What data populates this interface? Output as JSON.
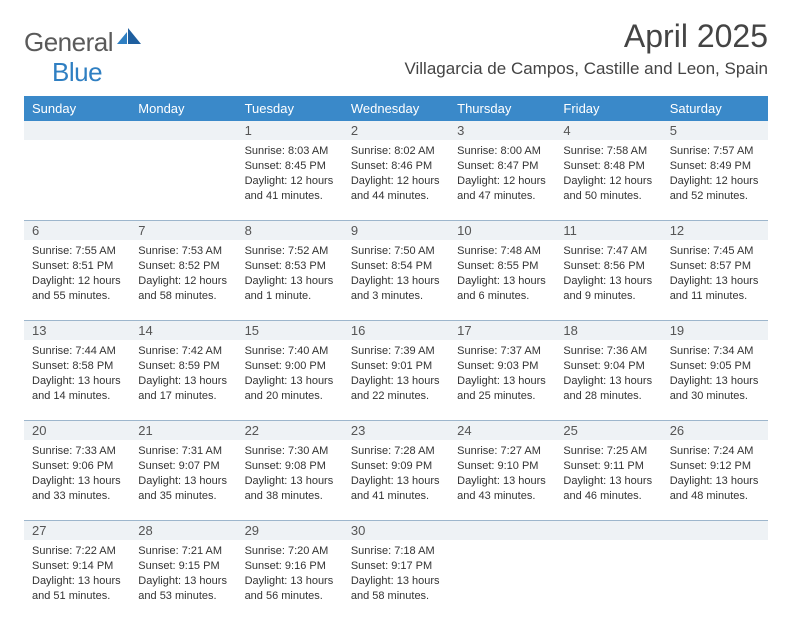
{
  "brand": {
    "part1": "General",
    "part2": "Blue"
  },
  "title": "April 2025",
  "location": "Villagarcia de Campos, Castille and Leon, Spain",
  "colors": {
    "header_bg": "#3a89c9",
    "header_text": "#ffffff",
    "daynum_bg": "#eef2f5",
    "row_border": "#9db6cc",
    "brand_gray": "#5a5a5a",
    "brand_blue": "#2f7fc2"
  },
  "dayHeaders": [
    "Sunday",
    "Monday",
    "Tuesday",
    "Wednesday",
    "Thursday",
    "Friday",
    "Saturday"
  ],
  "weeks": [
    [
      null,
      null,
      {
        "n": "1",
        "sunrise": "8:03 AM",
        "sunset": "8:45 PM",
        "daylight": "12 hours and 41 minutes."
      },
      {
        "n": "2",
        "sunrise": "8:02 AM",
        "sunset": "8:46 PM",
        "daylight": "12 hours and 44 minutes."
      },
      {
        "n": "3",
        "sunrise": "8:00 AM",
        "sunset": "8:47 PM",
        "daylight": "12 hours and 47 minutes."
      },
      {
        "n": "4",
        "sunrise": "7:58 AM",
        "sunset": "8:48 PM",
        "daylight": "12 hours and 50 minutes."
      },
      {
        "n": "5",
        "sunrise": "7:57 AM",
        "sunset": "8:49 PM",
        "daylight": "12 hours and 52 minutes."
      }
    ],
    [
      {
        "n": "6",
        "sunrise": "7:55 AM",
        "sunset": "8:51 PM",
        "daylight": "12 hours and 55 minutes."
      },
      {
        "n": "7",
        "sunrise": "7:53 AM",
        "sunset": "8:52 PM",
        "daylight": "12 hours and 58 minutes."
      },
      {
        "n": "8",
        "sunrise": "7:52 AM",
        "sunset": "8:53 PM",
        "daylight": "13 hours and 1 minute."
      },
      {
        "n": "9",
        "sunrise": "7:50 AM",
        "sunset": "8:54 PM",
        "daylight": "13 hours and 3 minutes."
      },
      {
        "n": "10",
        "sunrise": "7:48 AM",
        "sunset": "8:55 PM",
        "daylight": "13 hours and 6 minutes."
      },
      {
        "n": "11",
        "sunrise": "7:47 AM",
        "sunset": "8:56 PM",
        "daylight": "13 hours and 9 minutes."
      },
      {
        "n": "12",
        "sunrise": "7:45 AM",
        "sunset": "8:57 PM",
        "daylight": "13 hours and 11 minutes."
      }
    ],
    [
      {
        "n": "13",
        "sunrise": "7:44 AM",
        "sunset": "8:58 PM",
        "daylight": "13 hours and 14 minutes."
      },
      {
        "n": "14",
        "sunrise": "7:42 AM",
        "sunset": "8:59 PM",
        "daylight": "13 hours and 17 minutes."
      },
      {
        "n": "15",
        "sunrise": "7:40 AM",
        "sunset": "9:00 PM",
        "daylight": "13 hours and 20 minutes."
      },
      {
        "n": "16",
        "sunrise": "7:39 AM",
        "sunset": "9:01 PM",
        "daylight": "13 hours and 22 minutes."
      },
      {
        "n": "17",
        "sunrise": "7:37 AM",
        "sunset": "9:03 PM",
        "daylight": "13 hours and 25 minutes."
      },
      {
        "n": "18",
        "sunrise": "7:36 AM",
        "sunset": "9:04 PM",
        "daylight": "13 hours and 28 minutes."
      },
      {
        "n": "19",
        "sunrise": "7:34 AM",
        "sunset": "9:05 PM",
        "daylight": "13 hours and 30 minutes."
      }
    ],
    [
      {
        "n": "20",
        "sunrise": "7:33 AM",
        "sunset": "9:06 PM",
        "daylight": "13 hours and 33 minutes."
      },
      {
        "n": "21",
        "sunrise": "7:31 AM",
        "sunset": "9:07 PM",
        "daylight": "13 hours and 35 minutes."
      },
      {
        "n": "22",
        "sunrise": "7:30 AM",
        "sunset": "9:08 PM",
        "daylight": "13 hours and 38 minutes."
      },
      {
        "n": "23",
        "sunrise": "7:28 AM",
        "sunset": "9:09 PM",
        "daylight": "13 hours and 41 minutes."
      },
      {
        "n": "24",
        "sunrise": "7:27 AM",
        "sunset": "9:10 PM",
        "daylight": "13 hours and 43 minutes."
      },
      {
        "n": "25",
        "sunrise": "7:25 AM",
        "sunset": "9:11 PM",
        "daylight": "13 hours and 46 minutes."
      },
      {
        "n": "26",
        "sunrise": "7:24 AM",
        "sunset": "9:12 PM",
        "daylight": "13 hours and 48 minutes."
      }
    ],
    [
      {
        "n": "27",
        "sunrise": "7:22 AM",
        "sunset": "9:14 PM",
        "daylight": "13 hours and 51 minutes."
      },
      {
        "n": "28",
        "sunrise": "7:21 AM",
        "sunset": "9:15 PM",
        "daylight": "13 hours and 53 minutes."
      },
      {
        "n": "29",
        "sunrise": "7:20 AM",
        "sunset": "9:16 PM",
        "daylight": "13 hours and 56 minutes."
      },
      {
        "n": "30",
        "sunrise": "7:18 AM",
        "sunset": "9:17 PM",
        "daylight": "13 hours and 58 minutes."
      },
      null,
      null,
      null
    ]
  ]
}
